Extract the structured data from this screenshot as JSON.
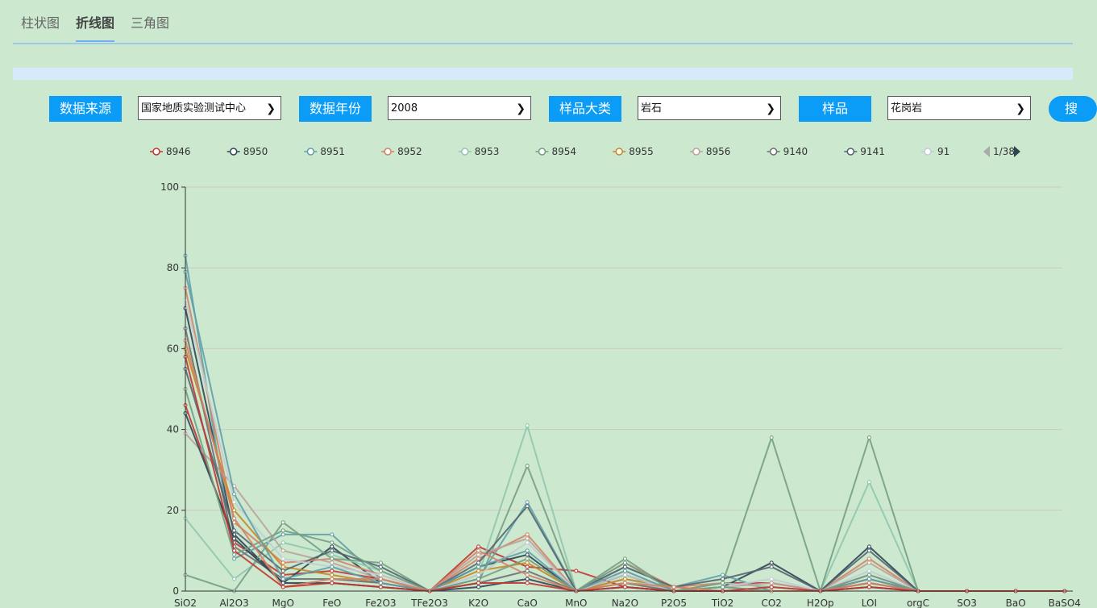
{
  "tabs": [
    {
      "label": "柱状图",
      "active": false
    },
    {
      "label": "折线图",
      "active": true
    },
    {
      "label": "三角图",
      "active": false
    }
  ],
  "filters": {
    "source_label": "数据来源",
    "source_value": "国家地质实验测试中心",
    "year_label": "数据年份",
    "year_value": "2008",
    "category_label": "样品大类",
    "category_value": "岩石",
    "sample_label": "样品",
    "sample_value": "花岗岩",
    "search_label": "搜"
  },
  "colors": {
    "accent": "#0a9cf6",
    "background": "#cce8cf"
  },
  "chart_data": {
    "type": "line",
    "categories": [
      "SiO2",
      "Al2O3",
      "MgO",
      "FeO",
      "Fe2O3",
      "TFe2O3",
      "K2O",
      "CaO",
      "MnO",
      "Na2O",
      "P2O5",
      "TiO2",
      "CO2",
      "H2Op",
      "LOI",
      "orgC",
      "SO3",
      "BaO",
      "BaSO4"
    ],
    "ylim": [
      0,
      100
    ],
    "yticks": [
      0,
      20,
      40,
      60,
      80,
      100
    ],
    "legend": {
      "position": "top",
      "page": "1/38",
      "entries": [
        {
          "name": "8946",
          "color": "#c23531"
        },
        {
          "name": "8950",
          "color": "#2f4554"
        },
        {
          "name": "8951",
          "color": "#61a0a8"
        },
        {
          "name": "8952",
          "color": "#d48265"
        },
        {
          "name": "8953",
          "color": "#91c7ae"
        },
        {
          "name": "8954",
          "color": "#749f83"
        },
        {
          "name": "8955",
          "color": "#ca8622"
        },
        {
          "name": "8956",
          "color": "#bda29a"
        },
        {
          "name": "9140",
          "color": "#6e7074"
        },
        {
          "name": "9141",
          "color": "#546570"
        },
        {
          "name": "91",
          "color": "#c4ccd3"
        }
      ]
    },
    "series": [
      {
        "color": "#c23531",
        "values": [
          46,
          12,
          4,
          5,
          3,
          0,
          11,
          6,
          5,
          1,
          0,
          2,
          2,
          0,
          3,
          0,
          0,
          0,
          0
        ]
      },
      {
        "color": "#2f4554",
        "values": [
          70,
          14,
          2,
          11,
          2,
          0,
          6,
          9,
          0,
          4,
          0,
          1,
          7,
          0,
          11,
          0,
          0,
          0,
          0
        ]
      },
      {
        "color": "#61a0a8",
        "values": [
          83,
          8,
          14,
          14,
          3,
          0,
          3,
          22,
          0,
          6,
          1,
          4,
          0,
          0,
          4,
          0,
          0,
          0,
          0
        ]
      },
      {
        "color": "#d48265",
        "values": [
          75,
          17,
          7,
          8,
          4,
          0,
          8,
          14,
          0,
          7,
          1,
          2,
          1,
          0,
          8,
          0,
          0,
          0,
          0
        ]
      },
      {
        "color": "#91c7ae",
        "values": [
          18,
          3,
          12,
          9,
          5,
          0,
          4,
          41,
          0,
          3,
          0,
          2,
          1,
          0,
          27,
          0,
          0,
          0,
          0
        ]
      },
      {
        "color": "#749f83",
        "values": [
          4,
          0,
          17,
          8,
          7,
          0,
          2,
          31,
          0,
          8,
          0,
          2,
          38,
          0,
          38,
          0,
          0,
          0,
          0
        ]
      },
      {
        "color": "#ca8622",
        "values": [
          60,
          20,
          6,
          4,
          2,
          0,
          5,
          7,
          0,
          3,
          1,
          0,
          0,
          0,
          2,
          0,
          0,
          0,
          0
        ]
      },
      {
        "color": "#bda29a",
        "values": [
          39,
          26,
          10,
          7,
          3,
          0,
          9,
          13,
          0,
          5,
          0,
          1,
          2,
          0,
          7,
          0,
          0,
          0,
          0
        ]
      },
      {
        "color": "#6e7074",
        "values": [
          65,
          11,
          3,
          3,
          2,
          0,
          2,
          5,
          0,
          2,
          0,
          0,
          0,
          0,
          2,
          0,
          0,
          0,
          0
        ]
      },
      {
        "color": "#546570",
        "values": [
          55,
          15,
          5,
          10,
          6,
          0,
          7,
          21,
          0,
          6,
          1,
          3,
          6,
          0,
          10,
          0,
          0,
          0,
          0
        ]
      },
      {
        "color": "#c4ccd3",
        "values": [
          72,
          22,
          8,
          6,
          4,
          0,
          4,
          12,
          0,
          4,
          0,
          1,
          3,
          0,
          5,
          0,
          0,
          0,
          0
        ]
      },
      {
        "color": "#2f4554",
        "values": [
          44,
          13,
          2,
          2,
          1,
          0,
          1,
          3,
          0,
          1,
          0,
          0,
          0,
          0,
          1,
          0,
          0,
          0,
          0
        ]
      },
      {
        "color": "#61a0a8",
        "values": [
          79,
          24,
          3,
          6,
          2,
          0,
          6,
          10,
          0,
          5,
          0,
          1,
          0,
          0,
          3,
          0,
          0,
          0,
          0
        ]
      },
      {
        "color": "#749f83",
        "values": [
          50,
          9,
          15,
          12,
          5,
          0,
          3,
          8,
          0,
          7,
          0,
          1,
          0,
          0,
          4,
          0,
          0,
          0,
          0
        ]
      },
      {
        "color": "#d48265",
        "values": [
          62,
          18,
          1,
          3,
          3,
          0,
          10,
          4,
          0,
          2,
          1,
          0,
          0,
          0,
          2,
          0,
          0,
          0,
          0
        ]
      },
      {
        "color": "#c23531",
        "values": [
          58,
          10,
          1,
          2,
          1,
          0,
          2,
          2,
          0,
          1,
          0,
          0,
          1,
          0,
          1,
          0,
          0,
          0,
          0
        ]
      }
    ]
  }
}
